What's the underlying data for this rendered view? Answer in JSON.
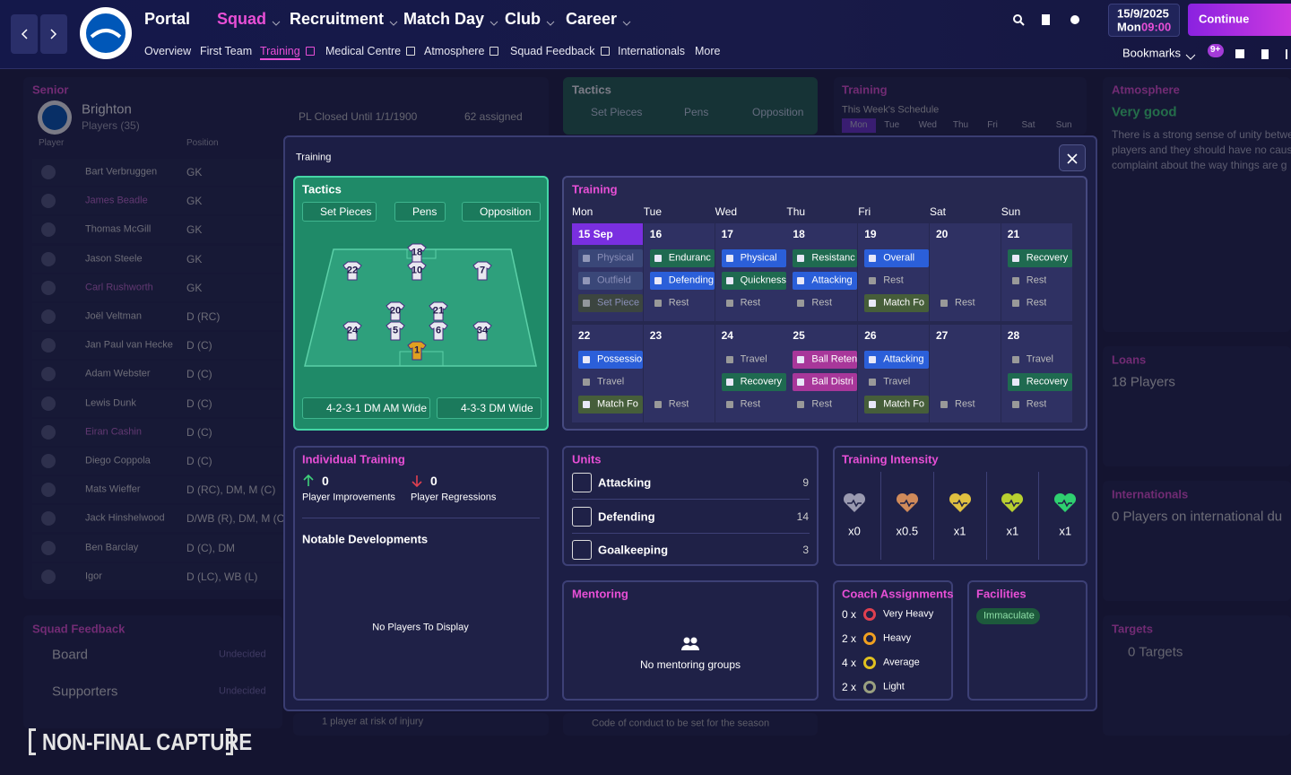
{
  "nav": {
    "main": [
      "Portal",
      "Squad",
      "Recruitment",
      "Match Day",
      "Club",
      "Career"
    ],
    "sub": [
      "Overview",
      "First Team",
      "Training",
      "Medical Centre",
      "Atmosphere",
      "Squad Feedback",
      "Internationals",
      "More"
    ],
    "date": "15/9/2025",
    "day": "Mon",
    "time": "09:00",
    "continue": "Continue",
    "bookmarks": "Bookmarks",
    "badge": "9+"
  },
  "background": {
    "senior": {
      "label": "Senior",
      "team": "Brighton",
      "players_count": "Players (35)",
      "status": "PL Closed Until 1/1/1900",
      "assigned": "62 assigned",
      "columns": [
        "Player",
        "Position"
      ],
      "players": [
        [
          "Bart Verbruggen",
          "GK"
        ],
        [
          "James Beadle",
          "GK"
        ],
        [
          "Thomas McGill",
          "GK"
        ],
        [
          "Jason Steele",
          "GK"
        ],
        [
          "Carl Rushworth",
          "GK"
        ],
        [
          "Joël Veltman",
          "D (RC)"
        ],
        [
          "Jan Paul van Hecke",
          "D (C)"
        ],
        [
          "Adam Webster",
          "D (C)"
        ],
        [
          "Lewis Dunk",
          "D (C)"
        ],
        [
          "Eiran Cashin",
          "D (C)"
        ],
        [
          "Diego Coppola",
          "D (C)"
        ],
        [
          "Mats Wieffer",
          "D (RC), DM, M (C)"
        ],
        [
          "Jack Hinshelwood",
          "D/WB (R), DM, M (C)"
        ],
        [
          "Ben Barclay",
          "D (C), DM"
        ],
        [
          "Igor",
          "D (LC), WB (L)"
        ]
      ]
    },
    "tactics": {
      "title": "Tactics",
      "tabs": [
        "Set Pieces",
        "Pens",
        "Opposition"
      ]
    },
    "training": {
      "title": "Training",
      "subtitle": "This Week's Schedule",
      "days": [
        "Mon",
        "Tue",
        "Wed",
        "Thu",
        "Fri",
        "Sat",
        "Sun"
      ]
    },
    "atmosphere": {
      "title": "Atmosphere",
      "rating": "Very good",
      "lines": [
        "There is a strong sense of unity betwe",
        "players and they should have no caus",
        "complaint about the way things are g"
      ]
    },
    "loans": {
      "title": "Loans",
      "value": "18 Players"
    },
    "internationals": {
      "title": "Internationals",
      "value": "0 Players on international du"
    },
    "targets": {
      "title": "Targets",
      "value": "0 Targets"
    },
    "squad_feedback": {
      "title": "Squad Feedback",
      "rows": [
        [
          "Board",
          "Undecided"
        ],
        [
          "Supporters",
          "Undecided"
        ]
      ]
    },
    "alerts": [
      "1 player at risk of injury",
      "Code of conduct to be set for the season"
    ],
    "watermark": "NON-FINAL CAPTURE"
  },
  "modal": {
    "title": "Training",
    "tactics": {
      "title": "Tactics",
      "buttons": [
        "Set Pieces",
        "Pens",
        "Opposition"
      ],
      "players": [
        "18",
        "10",
        "22",
        "7",
        "20",
        "21",
        "5",
        "6",
        "24",
        "34",
        "1"
      ],
      "formations": [
        "4-2-3-1 DM AM Wide",
        "4-3-3 DM Wide"
      ]
    },
    "schedule": {
      "title": "Training",
      "days": [
        "Mon",
        "Tue",
        "Wed",
        "Thu",
        "Fri",
        "Sat",
        "Sun"
      ],
      "weeks": [
        [
          {
            "date": "15 Sep",
            "sessions": [
              {
                "name": "Physical",
                "color": "#3a4778"
              },
              {
                "name": "Outfield",
                "color": "#3a4778"
              },
              {
                "name": "Set Piece",
                "color": "#3c4540"
              }
            ]
          },
          {
            "date": "16",
            "sessions": [
              {
                "name": "Enduranc",
                "color": "#1f6a50"
              },
              {
                "name": "Defending",
                "color": "#2b5fd9"
              },
              {
                "name": "Rest"
              }
            ]
          },
          {
            "date": "17",
            "sessions": [
              {
                "name": "Physical",
                "color": "#2b5fd9"
              },
              {
                "name": "Quickness",
                "color": "#1f6a50"
              },
              {
                "name": "Rest"
              }
            ]
          },
          {
            "date": "18",
            "sessions": [
              {
                "name": "Resistanc",
                "color": "#1f6a50"
              },
              {
                "name": "Attacking",
                "color": "#2b5fd9"
              },
              {
                "name": "Rest"
              }
            ]
          },
          {
            "date": "19",
            "sessions": [
              {
                "name": "Overall",
                "color": "#2b5fd9"
              },
              {
                "name": "Rest"
              },
              {
                "name": "Match Fo",
                "color": "#465e3a"
              }
            ]
          },
          {
            "date": "20",
            "sessions": [
              {
                "name": "Rest"
              }
            ]
          },
          {
            "date": "21",
            "sessions": [
              {
                "name": "Recovery",
                "color": "#1f6a50"
              },
              {
                "name": "Rest"
              },
              {
                "name": "Rest"
              }
            ]
          }
        ],
        [
          {
            "date": "22",
            "sessions": [
              {
                "name": "Possessio",
                "color": "#2b5fd9"
              },
              {
                "name": "Travel"
              },
              {
                "name": "Match Fo",
                "color": "#465e3a"
              }
            ]
          },
          {
            "date": "23",
            "sessions": [
              {
                "name": "Rest"
              }
            ]
          },
          {
            "date": "24",
            "sessions": [
              {
                "name": "Travel"
              },
              {
                "name": "Recovery",
                "color": "#1f6a50"
              },
              {
                "name": "Rest"
              }
            ]
          },
          {
            "date": "25",
            "sessions": [
              {
                "name": "Ball Reten",
                "color": "#a8379a"
              },
              {
                "name": "Ball Distri",
                "color": "#a8379a"
              },
              {
                "name": "Rest"
              }
            ]
          },
          {
            "date": "26",
            "sessions": [
              {
                "name": "Attacking",
                "color": "#2b5fd9"
              },
              {
                "name": "Travel"
              },
              {
                "name": "Match Fo",
                "color": "#465e3a"
              }
            ]
          },
          {
            "date": "27",
            "sessions": [
              {
                "name": "Rest"
              }
            ]
          },
          {
            "date": "28",
            "sessions": [
              {
                "name": "Travel"
              },
              {
                "name": "Recovery",
                "color": "#1f6a50"
              },
              {
                "name": "Rest"
              }
            ]
          }
        ]
      ]
    },
    "individual": {
      "title": "Individual Training",
      "improvements": {
        "value": "0",
        "label": "Player Improvements"
      },
      "regressions": {
        "value": "0",
        "label": "Player Regressions"
      },
      "notable": "Notable Developments",
      "empty": "No Players To Display"
    },
    "units": {
      "title": "Units",
      "rows": [
        {
          "name": "Attacking",
          "value": "9"
        },
        {
          "name": "Defending",
          "value": "14"
        },
        {
          "name": "Goalkeeping",
          "value": "3"
        }
      ]
    },
    "intensity": {
      "title": "Training Intensity",
      "levels": [
        {
          "label": "x0",
          "color": "#9a9ab0"
        },
        {
          "label": "x0.5",
          "color": "#d08a5a"
        },
        {
          "label": "x1",
          "color": "#e0c040"
        },
        {
          "label": "x1",
          "color": "#b8d030"
        },
        {
          "label": "x1",
          "color": "#2fd070"
        }
      ]
    },
    "mentoring": {
      "title": "Mentoring",
      "empty": "No mentoring groups"
    },
    "coaches": {
      "title": "Coach Assignments",
      "rows": [
        {
          "count": "0 x",
          "label": "Very Heavy",
          "color": "#e04050"
        },
        {
          "count": "2 x",
          "label": "Heavy",
          "color": "#f0a020"
        },
        {
          "count": "4 x",
          "label": "Average",
          "color": "#e0c020"
        },
        {
          "count": "2 x",
          "label": "Light",
          "color": "#9aa080"
        }
      ]
    },
    "facilities": {
      "title": "Facilities",
      "rating": "Immaculate"
    }
  }
}
